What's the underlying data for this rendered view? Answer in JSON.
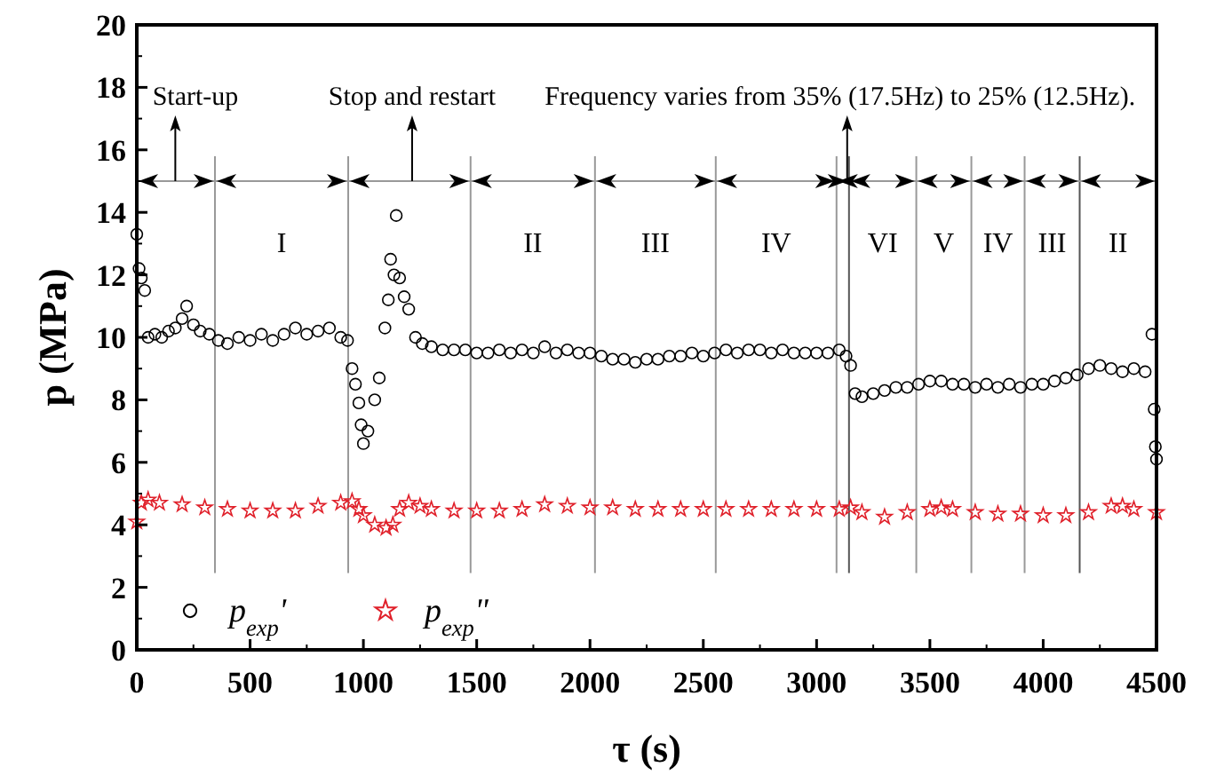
{
  "chart_data": {
    "type": "scatter",
    "xlabel": "τ (s)",
    "ylabel": "p (MPa)",
    "xlim": [
      0,
      4500
    ],
    "xticks": [
      0,
      500,
      1000,
      1500,
      2000,
      2500,
      3000,
      3500,
      4000,
      4500
    ],
    "ylim": [
      0,
      20
    ],
    "yticks": [
      0,
      2,
      4,
      6,
      8,
      10,
      12,
      14,
      16,
      18,
      20
    ],
    "grid": false,
    "legend": "bottom left",
    "series": [
      {
        "name": "p$_{exp}$'",
        "color": "#000000",
        "marker": "circle",
        "x": [
          0,
          10,
          20,
          35,
          50,
          80,
          110,
          140,
          170,
          200,
          220,
          250,
          280,
          320,
          360,
          400,
          450,
          500,
          550,
          600,
          650,
          700,
          750,
          800,
          850,
          900,
          930,
          950,
          965,
          980,
          990,
          1000,
          1020,
          1050,
          1070,
          1095,
          1110,
          1120,
          1135,
          1145,
          1160,
          1180,
          1200,
          1230,
          1260,
          1300,
          1350,
          1400,
          1450,
          1500,
          1550,
          1600,
          1650,
          1700,
          1750,
          1800,
          1850,
          1900,
          1950,
          2000,
          2050,
          2100,
          2150,
          2200,
          2250,
          2300,
          2350,
          2400,
          2450,
          2500,
          2550,
          2600,
          2650,
          2700,
          2750,
          2800,
          2850,
          2900,
          2950,
          3000,
          3050,
          3100,
          3130,
          3150,
          3170,
          3200,
          3250,
          3300,
          3350,
          3400,
          3450,
          3500,
          3550,
          3600,
          3650,
          3700,
          3750,
          3800,
          3850,
          3900,
          3950,
          4000,
          4050,
          4100,
          4150,
          4200,
          4250,
          4300,
          4350,
          4400,
          4450,
          4480,
          4490,
          4495,
          4500
        ],
        "values": [
          13.3,
          12.2,
          11.9,
          11.5,
          10.0,
          10.1,
          10.0,
          10.2,
          10.3,
          10.6,
          11.0,
          10.4,
          10.2,
          10.1,
          9.9,
          9.8,
          10.0,
          9.9,
          10.1,
          9.9,
          10.1,
          10.3,
          10.1,
          10.2,
          10.3,
          10.0,
          9.9,
          9.0,
          8.5,
          7.9,
          7.2,
          6.6,
          7.0,
          8.0,
          8.7,
          10.3,
          11.2,
          12.5,
          12.0,
          13.9,
          11.9,
          11.3,
          10.9,
          10.0,
          9.8,
          9.7,
          9.6,
          9.6,
          9.6,
          9.5,
          9.5,
          9.6,
          9.5,
          9.6,
          9.5,
          9.7,
          9.5,
          9.6,
          9.5,
          9.5,
          9.4,
          9.3,
          9.3,
          9.2,
          9.3,
          9.3,
          9.4,
          9.4,
          9.5,
          9.4,
          9.5,
          9.6,
          9.5,
          9.6,
          9.6,
          9.5,
          9.6,
          9.5,
          9.5,
          9.5,
          9.5,
          9.6,
          9.4,
          9.1,
          8.2,
          8.1,
          8.2,
          8.3,
          8.4,
          8.4,
          8.5,
          8.6,
          8.6,
          8.5,
          8.5,
          8.4,
          8.5,
          8.4,
          8.5,
          8.4,
          8.5,
          8.5,
          8.6,
          8.7,
          8.8,
          9.0,
          9.1,
          9.0,
          8.9,
          9.0,
          8.9,
          10.1,
          7.7,
          6.5,
          6.1
        ]
      },
      {
        "name": "p$_{exp}$\"",
        "color": "#e0202a",
        "marker": "star",
        "x": [
          0,
          20,
          50,
          100,
          200,
          300,
          400,
          500,
          600,
          700,
          800,
          900,
          950,
          980,
          1000,
          1050,
          1100,
          1130,
          1160,
          1200,
          1250,
          1300,
          1400,
          1500,
          1600,
          1700,
          1800,
          1900,
          2000,
          2100,
          2200,
          2300,
          2400,
          2500,
          2600,
          2700,
          2800,
          2900,
          3000,
          3100,
          3150,
          3200,
          3300,
          3400,
          3500,
          3550,
          3600,
          3700,
          3800,
          3900,
          4000,
          4100,
          4200,
          4300,
          4350,
          4400,
          4500
        ],
        "values": [
          4.1,
          4.7,
          4.8,
          4.7,
          4.65,
          4.55,
          4.5,
          4.45,
          4.45,
          4.45,
          4.6,
          4.7,
          4.75,
          4.5,
          4.3,
          4.0,
          3.9,
          4.0,
          4.5,
          4.7,
          4.6,
          4.5,
          4.45,
          4.45,
          4.45,
          4.5,
          4.65,
          4.6,
          4.55,
          4.55,
          4.5,
          4.5,
          4.5,
          4.5,
          4.5,
          4.5,
          4.5,
          4.5,
          4.5,
          4.5,
          4.55,
          4.4,
          4.25,
          4.4,
          4.5,
          4.55,
          4.5,
          4.4,
          4.35,
          4.35,
          4.3,
          4.3,
          4.4,
          4.6,
          4.6,
          4.5,
          4.4
        ]
      }
    ],
    "ref_lines": [
      {
        "axis": "y",
        "value": 15,
        "color": "#999999"
      },
      {
        "axis": "x",
        "value": 170,
        "label": "Start-up",
        "color": "#000000"
      },
      {
        "axis": "x",
        "value": 1215,
        "label": "Stop and restart",
        "color": "#000000"
      },
      {
        "axis": "x",
        "value": 3135,
        "label": "Frequency varies from 35% (17.5Hz) to 25% (12.5Hz).",
        "color": "#000000"
      },
      {
        "axis": "x",
        "value": 345,
        "color": "#999999"
      },
      {
        "axis": "x",
        "value": 933,
        "color": "#999999"
      },
      {
        "axis": "x",
        "value": 1473,
        "color": "#999999"
      },
      {
        "axis": "x",
        "value": 2022,
        "color": "#999999"
      },
      {
        "axis": "x",
        "value": 2555,
        "color": "#999999"
      },
      {
        "axis": "x",
        "value": 3088,
        "color": "#999999"
      },
      {
        "axis": "x",
        "value": 3143,
        "color": "#555555"
      },
      {
        "axis": "x",
        "value": 3440,
        "color": "#999999"
      },
      {
        "axis": "x",
        "value": 3683,
        "color": "#999999"
      },
      {
        "axis": "x",
        "value": 3918,
        "color": "#999999"
      },
      {
        "axis": "x",
        "value": 4161,
        "color": "#555555"
      }
    ],
    "annotations": [
      "I",
      "II",
      "III",
      "IV",
      "VI",
      "V",
      "IV",
      "III",
      "II"
    ]
  }
}
